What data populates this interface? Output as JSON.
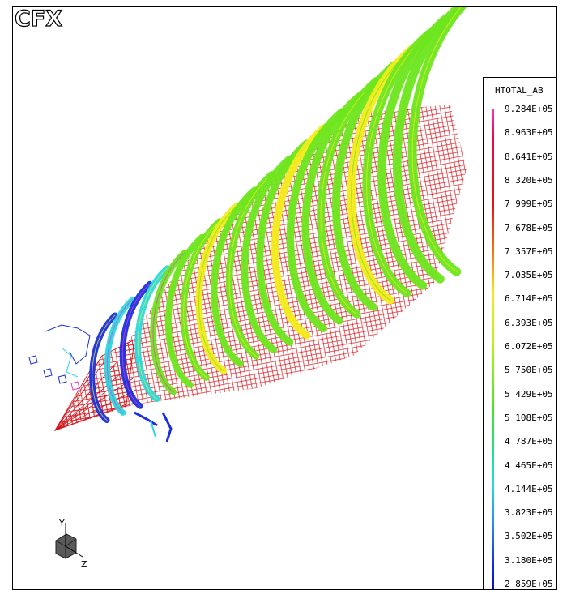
{
  "logo": "CFX",
  "legend": {
    "title": "HTOTAL_AB",
    "ticks": [
      "9.284E+05",
      "8.963E+05",
      "8.641E+05",
      "8 320E+05",
      "7 999E+05",
      "7 678E+05",
      "7 357E+05",
      "7.035E+05",
      "6.714E+05",
      "6.393E+05",
      "6.072E+05",
      "5 750E+05",
      "5 429E+05",
      "5 108E+05",
      "4 787E+05",
      "4 465E+05",
      "4.144E+05",
      "3.823E+05",
      "3.502E+05",
      "3.180E+05",
      "2 859E+05"
    ]
  },
  "axes": {
    "y": "Y",
    "z": "Z"
  },
  "colors": {
    "red": "#e4161c",
    "green": "#6ee61e",
    "yellow": "#f2ec1a",
    "cyan": "#28d9e0",
    "blue": "#1a2fe0",
    "magenta": "#e83cc0"
  }
}
